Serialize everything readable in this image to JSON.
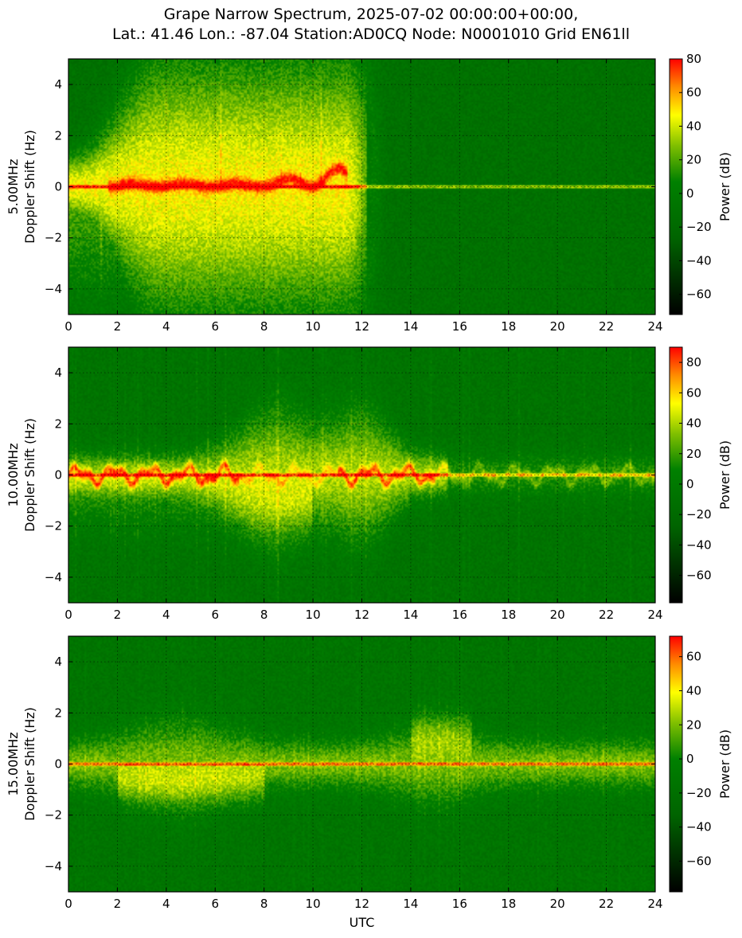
{
  "figure": {
    "title_line1": "Grape Narrow Spectrum, 2025-07-02 00:00:00+00:00,",
    "title_line2": "Lat.: 41.46 Lon.: -87.04 Station:AD0CQ Node: N0001010 Grid EN61ll",
    "x_label": "UTC"
  },
  "colors": {
    "cmap": [
      "#000000",
      "#006400",
      "#008000",
      "#7fbf00",
      "#ffff00",
      "#ff8c00",
      "#ff0000"
    ]
  },
  "chart_data": [
    {
      "type": "heatmap",
      "panel": "5.00MHz",
      "ylabel_line1": "5.00MHz",
      "ylabel_line2": "Doppler Shift (Hz)",
      "xlim": [
        0,
        24
      ],
      "ylim": [
        -5,
        5
      ],
      "x_ticks": [
        0,
        2,
        4,
        6,
        8,
        10,
        12,
        14,
        16,
        18,
        20,
        22,
        24
      ],
      "y_ticks": [
        -4,
        -2,
        0,
        2,
        4
      ],
      "grid": true,
      "colorbar": {
        "label": "Power (dB)",
        "range": [
          -72,
          80
        ],
        "ticks": [
          -60,
          -40,
          -20,
          0,
          20,
          40,
          60,
          80
        ]
      },
      "features": {
        "carrier_doppler_hz": 0,
        "broad_spread_utc": [
          0,
          12.5
        ],
        "broad_spread_max_hz": 5,
        "red_trace_utc": [
          2,
          11.3
        ],
        "red_trace_max_hz": 0.9
      }
    },
    {
      "type": "heatmap",
      "panel": "10.00MHz",
      "ylabel_line1": "10.00MHz",
      "ylabel_line2": "Doppler Shift (Hz)",
      "xlim": [
        0,
        24
      ],
      "ylim": [
        -5,
        5
      ],
      "x_ticks": [
        0,
        2,
        4,
        6,
        8,
        10,
        12,
        14,
        16,
        18,
        20,
        22,
        24
      ],
      "y_ticks": [
        -4,
        -2,
        0,
        2,
        4
      ],
      "grid": true,
      "colorbar": {
        "label": "Power (dB)",
        "range": [
          -78,
          90
        ],
        "ticks": [
          -60,
          -40,
          -20,
          0,
          20,
          40,
          60,
          80
        ]
      },
      "features": {
        "carrier_doppler_hz": 0,
        "broad_spread_utc": [
          0,
          15
        ],
        "broad_spread_max_hz": 2.5,
        "red_trace_utc": [
          0,
          24
        ],
        "red_trace_max_hz": 0.6
      }
    },
    {
      "type": "heatmap",
      "panel": "15.00MHz",
      "ylabel_line1": "15.00MHz",
      "ylabel_line2": "Doppler Shift (Hz)",
      "xlim": [
        0,
        24
      ],
      "ylim": [
        -5,
        5
      ],
      "x_ticks": [
        0,
        2,
        4,
        6,
        8,
        10,
        12,
        14,
        16,
        18,
        20,
        22,
        24
      ],
      "y_ticks": [
        -4,
        -2,
        0,
        2,
        4
      ],
      "grid": true,
      "colorbar": {
        "label": "Power (dB)",
        "range": [
          -78,
          72
        ],
        "ticks": [
          -60,
          -40,
          -20,
          0,
          20,
          40,
          60
        ]
      },
      "features": {
        "carrier_doppler_hz": 0,
        "broad_spread_utc": [
          0,
          24
        ],
        "broad_spread_max_hz": 2,
        "red_trace_utc": [
          2,
          20
        ],
        "red_trace_max_hz": 1.5
      }
    }
  ]
}
